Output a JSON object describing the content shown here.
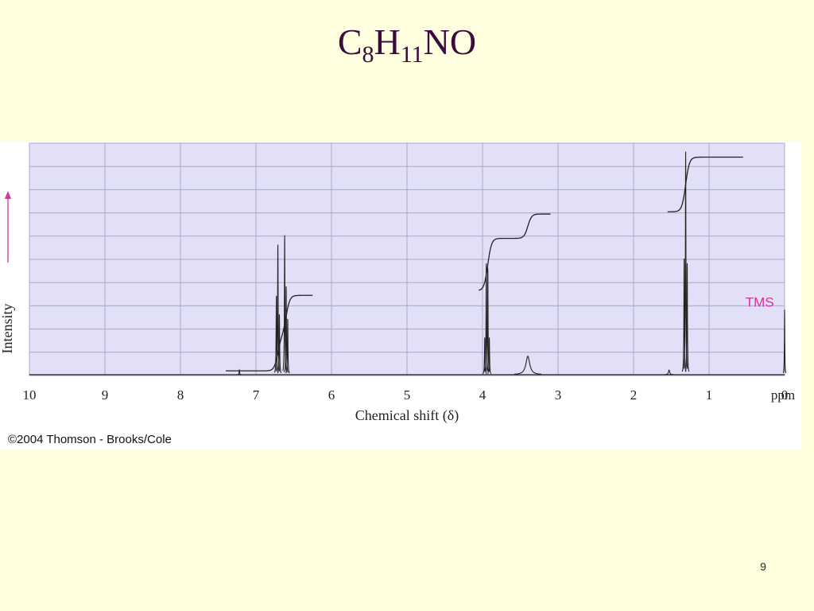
{
  "slide": {
    "title_parts": {
      "c": "C",
      "c_sub": "8",
      "h": "H",
      "h_sub": "11",
      "rest": "NO"
    },
    "page_number": "9",
    "copyright": "©2004 Thomson - Brooks/Cole"
  },
  "chart_data": {
    "type": "line",
    "subtype": "1H NMR spectrum",
    "title": "",
    "xlabel": "Chemical shift (δ)",
    "ylabel": "Intensity",
    "x_unit": "ppm",
    "xlim": [
      10,
      0
    ],
    "x_reversed": true,
    "x_ticks": [
      "10",
      "9",
      "8",
      "7",
      "6",
      "5",
      "4",
      "3",
      "2",
      "1",
      "0"
    ],
    "grid": true,
    "background_color": "#e2e0f6",
    "grid_color": "#a9a7c8",
    "trace_color": "#222222",
    "annotation_color": "#d6329a",
    "ylim": [
      0,
      1
    ],
    "peaks": [
      {
        "shift": 7.22,
        "height": 0.02,
        "width": 0.004
      },
      {
        "shift": 6.73,
        "height": 0.34,
        "width": 0.004
      },
      {
        "shift": 6.71,
        "height": 0.56,
        "width": 0.004
      },
      {
        "shift": 6.69,
        "height": 0.26,
        "width": 0.004
      },
      {
        "shift": 6.62,
        "height": 0.6,
        "width": 0.004
      },
      {
        "shift": 6.6,
        "height": 0.38,
        "width": 0.004
      },
      {
        "shift": 6.58,
        "height": 0.24,
        "width": 0.004
      },
      {
        "shift": 3.97,
        "height": 0.16,
        "width": 0.004
      },
      {
        "shift": 3.95,
        "height": 0.48,
        "width": 0.004
      },
      {
        "shift": 3.93,
        "height": 0.46,
        "width": 0.004
      },
      {
        "shift": 3.91,
        "height": 0.16,
        "width": 0.004
      },
      {
        "shift": 3.4,
        "height": 0.08,
        "width": 0.03
      },
      {
        "shift": 1.53,
        "height": 0.02,
        "width": 0.01
      },
      {
        "shift": 1.33,
        "height": 0.5,
        "width": 0.004
      },
      {
        "shift": 1.31,
        "height": 0.96,
        "width": 0.004
      },
      {
        "shift": 1.29,
        "height": 0.48,
        "width": 0.004
      },
      {
        "shift": 0.0,
        "height": 0.28,
        "width": 0.003
      }
    ],
    "integration_curves": [
      {
        "from": 7.4,
        "to": 6.25,
        "steps": [
          {
            "at": 6.71,
            "rise": 0.06
          },
          {
            "at": 6.6,
            "rise": 0.07
          }
        ],
        "start": 0.02,
        "plateau": 0.345
      },
      {
        "from": 4.05,
        "to": 3.1,
        "steps": [
          {
            "at": 3.93,
            "rise": 0.14
          },
          {
            "at": 3.4,
            "rise": 0.065
          }
        ],
        "start": 0.365,
        "plateau": 0.695
      },
      {
        "from": 1.55,
        "to": 0.55,
        "steps": [
          {
            "at": 1.31,
            "rise": 0.14
          }
        ],
        "start": 0.705,
        "plateau": 0.94
      }
    ],
    "annotations": [
      {
        "text": "TMS",
        "shift": 0.33,
        "y": 0.29
      }
    ]
  }
}
